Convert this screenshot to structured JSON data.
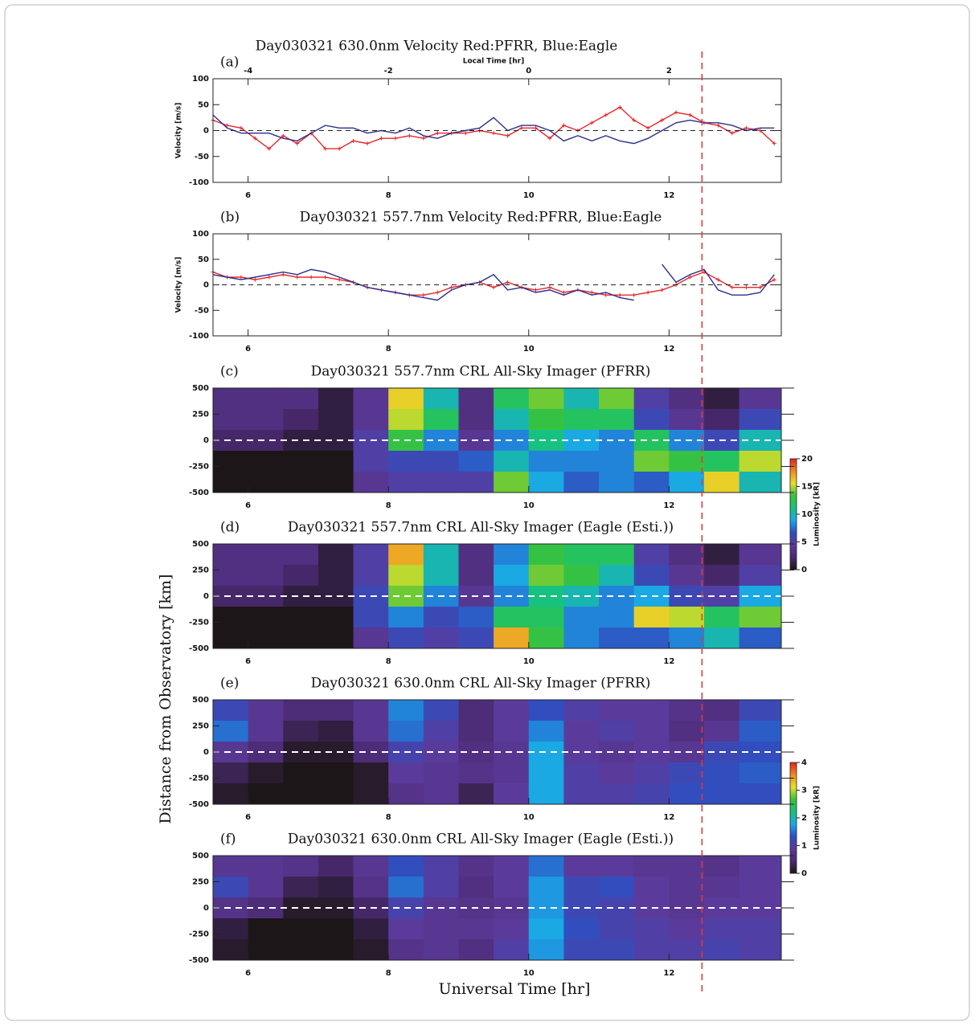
{
  "figure": {
    "xlabel": "Universal Time [hr]",
    "ylabel": "Distance from Observatory [km]",
    "reference_line": {
      "x": 12.47,
      "color": "#e03a3a"
    }
  },
  "chart_data": [
    {
      "type": "line",
      "panel": "(a)",
      "title": "Day030321 630.0nm Velocity Red:PFRR, Blue:Eagle",
      "ylabel": "Velocity [m/s]",
      "x2label": "Local Time [hr]",
      "x2lim": [
        -4.5,
        3.6
      ],
      "x2ticks": [
        -4,
        -2,
        0,
        2
      ],
      "xlim": [
        5.5,
        13.6
      ],
      "xticks": [
        6,
        8,
        10,
        12
      ],
      "ylim": [
        -100,
        100
      ],
      "yticks": [
        -100,
        -50,
        0,
        50,
        100
      ],
      "x": [
        5.5,
        5.7,
        5.9,
        6.1,
        6.3,
        6.5,
        6.7,
        6.9,
        7.1,
        7.3,
        7.5,
        7.7,
        7.9,
        8.1,
        8.3,
        8.5,
        8.7,
        8.9,
        9.1,
        9.3,
        9.5,
        9.7,
        9.9,
        10.1,
        10.3,
        10.5,
        10.7,
        10.9,
        11.1,
        11.3,
        11.5,
        11.7,
        11.9,
        12.1,
        12.3,
        12.5,
        12.7,
        12.9,
        13.1,
        13.3,
        13.5
      ],
      "series": [
        {
          "color": "#e8262a",
          "marker": true,
          "values": [
            20,
            10,
            5,
            -15,
            -35,
            -10,
            -25,
            -5,
            -35,
            -35,
            -20,
            -25,
            -15,
            -15,
            -10,
            -15,
            -5,
            -5,
            -5,
            0,
            -5,
            -10,
            5,
            5,
            -15,
            10,
            0,
            15,
            30,
            45,
            20,
            5,
            20,
            35,
            30,
            15,
            10,
            -5,
            5,
            0,
            -25
          ]
        },
        {
          "color": "#2c2f8c",
          "marker": false,
          "values": [
            30,
            5,
            -5,
            -5,
            -5,
            -15,
            -20,
            -5,
            10,
            5,
            5,
            -5,
            0,
            -5,
            5,
            -10,
            -15,
            -5,
            0,
            5,
            25,
            0,
            10,
            10,
            0,
            -20,
            -10,
            -20,
            -10,
            -20,
            -25,
            -15,
            0,
            15,
            20,
            15,
            15,
            10,
            0,
            5,
            5
          ]
        }
      ]
    },
    {
      "type": "line",
      "panel": "(b)",
      "title": "Day030321 557.7nm Velocity Red:PFRR, Blue:Eagle",
      "ylabel": "Velocity [m/s]",
      "xlim": [
        5.5,
        13.6
      ],
      "xticks": [
        6,
        8,
        10,
        12
      ],
      "ylim": [
        -100,
        100
      ],
      "yticks": [
        -100,
        -50,
        0,
        50,
        100
      ],
      "x": [
        5.5,
        5.7,
        5.9,
        6.1,
        6.3,
        6.5,
        6.7,
        6.9,
        7.1,
        7.3,
        7.5,
        7.7,
        7.9,
        8.1,
        8.3,
        8.5,
        8.7,
        8.9,
        9.1,
        9.3,
        9.5,
        9.7,
        9.9,
        10.1,
        10.3,
        10.5,
        10.7,
        10.9,
        11.1,
        11.3,
        11.5,
        11.7,
        11.9,
        12.1,
        12.3,
        12.5,
        12.7,
        12.9,
        13.1,
        13.3,
        13.5
      ],
      "series": [
        {
          "color": "#e8262a",
          "marker": true,
          "values": [
            25,
            15,
            15,
            10,
            15,
            20,
            15,
            15,
            15,
            10,
            5,
            -5,
            -10,
            -15,
            -20,
            -20,
            -15,
            -5,
            0,
            5,
            -5,
            5,
            -5,
            -10,
            -5,
            -15,
            -10,
            -15,
            -20,
            -20,
            -20,
            -15,
            -10,
            0,
            15,
            25,
            10,
            -5,
            -5,
            -5,
            10
          ]
        },
        {
          "color": "#2c2f8c",
          "marker": false,
          "values": [
            20,
            15,
            10,
            15,
            20,
            25,
            20,
            30,
            25,
            15,
            5,
            -5,
            -10,
            -15,
            -20,
            -25,
            -30,
            -10,
            0,
            5,
            20,
            -10,
            -5,
            -15,
            -10,
            -20,
            -10,
            -20,
            -15,
            -25,
            -30,
            null,
            40,
            5,
            20,
            30,
            -10,
            -20,
            -20,
            -15,
            20
          ]
        }
      ]
    },
    {
      "type": "heatmap",
      "panel": "(c)",
      "title": "Day030321 557.7nm CRL All-Sky Imager (PFRR)",
      "xlim": [
        5.5,
        13.6
      ],
      "xticks": [
        6,
        8,
        10,
        12
      ],
      "ylim": [
        -500,
        500
      ],
      "yticks": [
        -500,
        -250,
        0,
        250,
        500
      ],
      "xbins": [
        5.5,
        6,
        6.5,
        7,
        7.5,
        8,
        8.5,
        9,
        9.5,
        10,
        10.5,
        11,
        11.5,
        12,
        12.5,
        13,
        13.6
      ],
      "ybins": [
        500,
        300,
        100,
        -100,
        -300,
        -500
      ],
      "z": [
        [
          3,
          3,
          3,
          1,
          4,
          16,
          10,
          3,
          12,
          14,
          10,
          14,
          5,
          3,
          1,
          4
        ],
        [
          3,
          3,
          2,
          1,
          4,
          15,
          12,
          3,
          10,
          13,
          12,
          12,
          6,
          4,
          2,
          6
        ],
        [
          2,
          2,
          1,
          1,
          5,
          13,
          8,
          4,
          8,
          11,
          9,
          8,
          12,
          8,
          6,
          10
        ],
        [
          0,
          0,
          0,
          0,
          5,
          6,
          6,
          7,
          10,
          8,
          8,
          8,
          14,
          13,
          12,
          15
        ],
        [
          0,
          0,
          0,
          0,
          4,
          5,
          5,
          5,
          14,
          9,
          7,
          8,
          7,
          9,
          16,
          10
        ]
      ],
      "colormap": [
        "#1c1618",
        "#4b2a73",
        "#5b3a9a",
        "#2f4fc0",
        "#1aa8e8",
        "#17c27a",
        "#3ac23a",
        "#e6e02a",
        "#f08a22",
        "#e02222"
      ],
      "clim": [
        0,
        20
      ],
      "cticks": [
        0,
        5,
        10,
        15,
        20
      ],
      "clabel": "Luminosity [kR]"
    },
    {
      "type": "heatmap",
      "panel": "(d)",
      "title": "Day030321 557.7nm CRL All-Sky Imager (Eagle (Esti.))",
      "xlim": [
        5.5,
        13.6
      ],
      "xticks": [
        6,
        8,
        10,
        12
      ],
      "ylim": [
        -500,
        500
      ],
      "yticks": [
        -500,
        -250,
        0,
        250,
        500
      ],
      "xbins": [
        5.5,
        6,
        6.5,
        7,
        7.5,
        8,
        8.5,
        9,
        9.5,
        10,
        10.5,
        11,
        11.5,
        12,
        12.5,
        13,
        13.6
      ],
      "ybins": [
        500,
        300,
        100,
        -100,
        -300,
        -500
      ],
      "z": [
        [
          3,
          3,
          3,
          1,
          5,
          17,
          10,
          3,
          8,
          13,
          12,
          12,
          5,
          3,
          1,
          4
        ],
        [
          3,
          3,
          2,
          1,
          5,
          15,
          10,
          3,
          9,
          14,
          13,
          10,
          6,
          4,
          2,
          5
        ],
        [
          2,
          2,
          1,
          1,
          6,
          14,
          8,
          4,
          8,
          11,
          10,
          8,
          9,
          6,
          5,
          9
        ],
        [
          0,
          0,
          0,
          0,
          6,
          8,
          6,
          7,
          12,
          12,
          8,
          8,
          16,
          15,
          12,
          14
        ],
        [
          0,
          0,
          0,
          0,
          4,
          6,
          5,
          6,
          17,
          13,
          8,
          7,
          7,
          8,
          10,
          7
        ]
      ],
      "colormap": [
        "#1c1618",
        "#4b2a73",
        "#5b3a9a",
        "#2f4fc0",
        "#1aa8e8",
        "#17c27a",
        "#3ac23a",
        "#e6e02a",
        "#f08a22",
        "#e02222"
      ],
      "clim": [
        0,
        20
      ]
    },
    {
      "type": "heatmap",
      "panel": "(e)",
      "title": "Day030321 630.0nm CRL All-Sky Imager (PFRR)",
      "xlim": [
        5.5,
        13.6
      ],
      "xticks": [
        6,
        8,
        10,
        12
      ],
      "ylim": [
        -500,
        500
      ],
      "yticks": [
        -500,
        -250,
        0,
        250,
        500
      ],
      "xbins": [
        5.5,
        6,
        6.5,
        7,
        7.5,
        8,
        8.5,
        9,
        9.5,
        10,
        10.5,
        11,
        11.5,
        12,
        12.5,
        13,
        13.6
      ],
      "ybins": [
        500,
        300,
        100,
        -100,
        -300,
        -500
      ],
      "z": [
        [
          1.2,
          0.8,
          0.5,
          0.5,
          0.8,
          1.6,
          1.2,
          0.5,
          0.9,
          1.3,
          1.0,
          0.9,
          0.9,
          0.7,
          0.6,
          1.2
        ],
        [
          1.5,
          0.8,
          0.3,
          0.2,
          0.8,
          1.5,
          1.0,
          0.5,
          0.9,
          1.6,
          0.9,
          1.0,
          0.9,
          0.6,
          0.8,
          1.4
        ],
        [
          0.8,
          0.5,
          0.1,
          0.1,
          0.5,
          1.1,
          0.9,
          0.6,
          0.8,
          1.8,
          0.9,
          0.8,
          0.9,
          0.8,
          1.2,
          1.3
        ],
        [
          0.3,
          0.1,
          0.0,
          0.0,
          0.1,
          0.9,
          0.8,
          0.7,
          0.8,
          1.8,
          1.0,
          0.9,
          1.0,
          1.2,
          1.3,
          1.4
        ],
        [
          0.1,
          0.0,
          0.0,
          0.0,
          0.1,
          0.7,
          0.8,
          0.3,
          0.9,
          1.8,
          1.0,
          1.0,
          1.1,
          1.3,
          1.3,
          1.3
        ]
      ],
      "colormap": [
        "#1c1618",
        "#4b2a73",
        "#5b3a9a",
        "#2f4fc0",
        "#1aa8e8",
        "#17c27a",
        "#3ac23a",
        "#e6e02a",
        "#f08a22",
        "#e02222"
      ],
      "clim": [
        0,
        4
      ],
      "cticks": [
        0,
        1,
        2,
        3,
        4
      ],
      "clabel": "Luminosity [kR]"
    },
    {
      "type": "heatmap",
      "panel": "(f)",
      "title": "Day030321 630.0nm CRL All-Sky Imager (Eagle (Esti.))",
      "xlim": [
        5.5,
        13.6
      ],
      "xticks": [
        6,
        8,
        10,
        12
      ],
      "ylim": [
        -500,
        500
      ],
      "yticks": [
        -500,
        -250,
        0,
        250,
        500
      ],
      "xbins": [
        5.5,
        6,
        6.5,
        7,
        7.5,
        8,
        8.5,
        9,
        9.5,
        10,
        10.5,
        11,
        11.5,
        12,
        12.5,
        13,
        13.6
      ],
      "ybins": [
        500,
        300,
        100,
        -100,
        -300,
        -500
      ],
      "z": [
        [
          0.8,
          0.8,
          0.7,
          0.4,
          0.8,
          1.3,
          1.0,
          0.7,
          0.9,
          1.5,
          0.9,
          0.9,
          0.8,
          0.8,
          0.7,
          0.9
        ],
        [
          1.2,
          0.8,
          0.3,
          0.2,
          0.7,
          1.5,
          1.0,
          0.6,
          0.9,
          1.7,
          1.2,
          1.3,
          0.9,
          0.8,
          0.8,
          0.9
        ],
        [
          0.7,
          0.5,
          0.1,
          0.1,
          0.4,
          1.1,
          0.8,
          0.7,
          0.8,
          1.7,
          1.2,
          1.1,
          0.9,
          0.8,
          0.9,
          0.9
        ],
        [
          0.2,
          0.0,
          0.0,
          0.0,
          0.2,
          0.9,
          0.8,
          0.8,
          0.9,
          1.8,
          1.3,
          1.1,
          1.0,
          0.9,
          1.0,
          1.0
        ],
        [
          0.1,
          0.0,
          0.0,
          0.0,
          0.1,
          0.7,
          0.8,
          0.6,
          1.0,
          1.7,
          1.2,
          1.2,
          1.0,
          1.0,
          1.1,
          1.0
        ]
      ],
      "colormap": [
        "#1c1618",
        "#4b2a73",
        "#5b3a9a",
        "#2f4fc0",
        "#1aa8e8",
        "#17c27a",
        "#3ac23a",
        "#e6e02a",
        "#f08a22",
        "#e02222"
      ],
      "clim": [
        0,
        4
      ]
    }
  ]
}
